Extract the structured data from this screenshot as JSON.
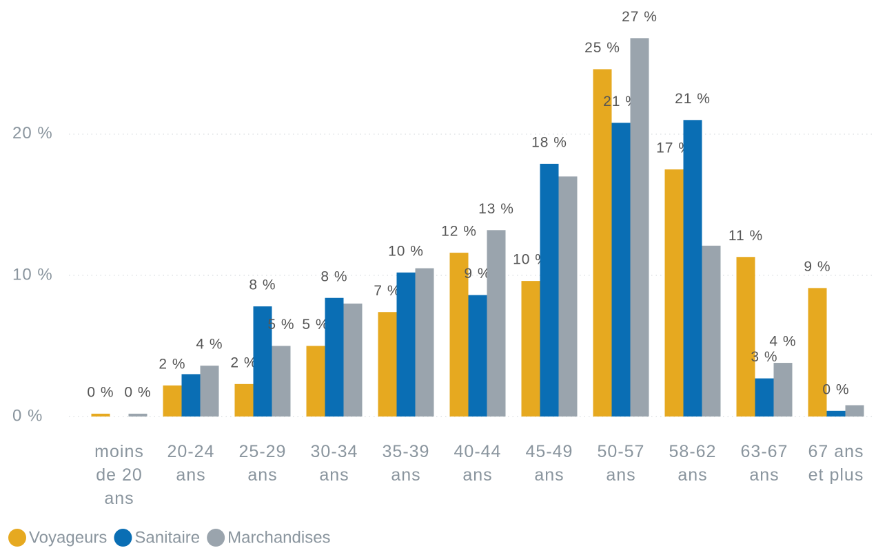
{
  "chart_data": {
    "type": "bar",
    "categories": [
      "moins de 20 ans",
      "20-24 ans",
      "25-29 ans",
      "30-34 ans",
      "35-39 ans",
      "40-44 ans",
      "45-49 ans",
      "50-57 ans",
      "58-62 ans",
      "63-67 ans",
      "67 ans et plus"
    ],
    "series": [
      {
        "name": "Voyageurs",
        "color": "#E6A920",
        "values": [
          0.2,
          2.2,
          2.3,
          5.0,
          7.4,
          11.6,
          9.6,
          24.6,
          17.5,
          11.3,
          9.1
        ],
        "value_labels": [
          "0 %",
          "2 %",
          "2 %",
          "5 %",
          "7 %",
          "12 %",
          "10 %",
          "25 %",
          "17 %",
          "11 %",
          "9 %"
        ]
      },
      {
        "name": "Sanitaire",
        "color": "#0A6EB4",
        "values": [
          null,
          3.0,
          7.8,
          8.4,
          10.2,
          8.6,
          17.9,
          20.8,
          21.0,
          2.7,
          0.4
        ],
        "value_labels": [
          null,
          null,
          "8 %",
          "8 %",
          "10 %",
          "9 %",
          "18 %",
          "21 %",
          "21 %",
          "3 %",
          "0 %"
        ]
      },
      {
        "name": "Marchandises",
        "color": "#9AA4AD",
        "values": [
          0.2,
          3.6,
          5.0,
          8.0,
          10.5,
          13.2,
          17.0,
          26.8,
          12.1,
          3.8,
          0.8
        ],
        "value_labels": [
          "0 %",
          "4 %",
          "5 %",
          null,
          null,
          "13 %",
          null,
          "27 %",
          null,
          "4 %",
          null
        ]
      }
    ],
    "ylim": [
      0,
      29.5
    ],
    "yticks": [
      {
        "value": 0,
        "label": "0 %"
      },
      {
        "value": 10,
        "label": "10 %"
      },
      {
        "value": 20,
        "label": "20 %"
      }
    ],
    "grid": true,
    "legend": "bottom-left"
  }
}
